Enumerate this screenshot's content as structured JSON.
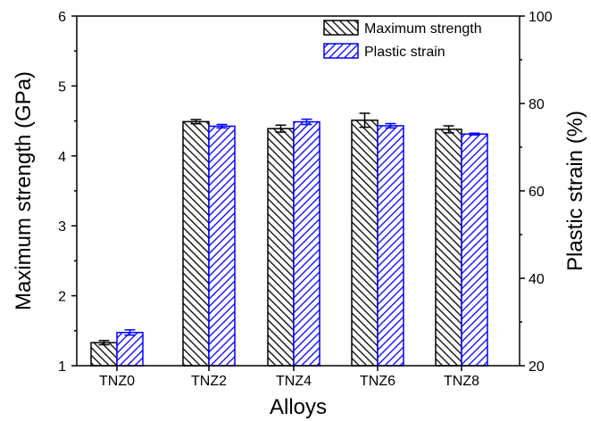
{
  "chart_data": {
    "type": "bar",
    "categories": [
      "TNZ0",
      "TNZ2",
      "TNZ4",
      "TNZ6",
      "TNZ8"
    ],
    "xlabel": "Alloys",
    "ylabel": "Maximum strength (GPa)",
    "ylabel_right": "Plastic strain  (%)",
    "ylim": [
      1,
      6
    ],
    "ylim_right": [
      20,
      100
    ],
    "yticks": [
      "1",
      "2",
      "3",
      "4",
      "5",
      "6"
    ],
    "yticks_right": [
      "20",
      "40",
      "60",
      "80",
      "100"
    ],
    "legend_position": "top-right",
    "grid": false,
    "series": [
      {
        "name": "Maximum strength",
        "axis": "left",
        "values": [
          1.33,
          4.49,
          4.39,
          4.51,
          4.38
        ],
        "errors": [
          0.03,
          0.03,
          0.05,
          0.1,
          0.05
        ],
        "color": "#000000",
        "hatch": "diagonal"
      },
      {
        "name": "Plastic strain",
        "axis": "right",
        "values": [
          27.6,
          74.8,
          75.8,
          74.9,
          73.0
        ],
        "errors": [
          0.6,
          0.4,
          0.6,
          0.5,
          0.2
        ],
        "color": "#0000ff",
        "hatch": "diagonal-reverse"
      }
    ]
  }
}
